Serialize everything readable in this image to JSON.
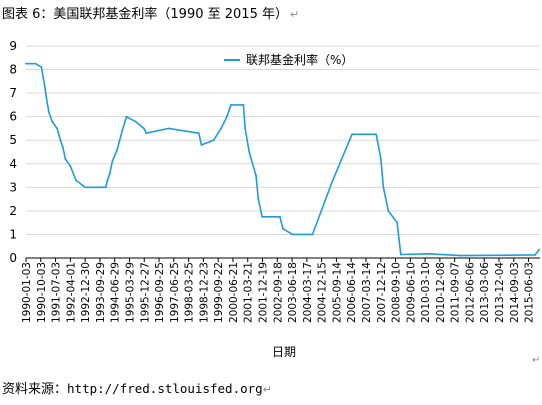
{
  "figure": {
    "title": "图表 6：美国联邦基金利率（1990 至 2015 年）",
    "paragraph_mark": "↵",
    "source_label": "资料来源：",
    "source_url": "http://fred.stlouisfed.org"
  },
  "colors": {
    "series": "#1f9ae0",
    "gridline": "#d9d9d9",
    "axis": "#000000"
  },
  "chart_data": {
    "type": "line",
    "xlabel": "日期",
    "ylabel": "",
    "ylim": [
      0,
      9
    ],
    "yticks": [
      "0",
      "1",
      "2",
      "3",
      "4",
      "5",
      "6",
      "7",
      "8",
      "9"
    ],
    "grid": "horizontal",
    "legend_position": "top-center",
    "x_tick_labels": [
      "1990-01-03",
      "1990-10-03",
      "1991-07-03",
      "1992-04-01",
      "1992-12-30",
      "1993-09-29",
      "1994-06-29",
      "1995-03-29",
      "1995-12-27",
      "1996-09-25",
      "1997-06-25",
      "1998-03-25",
      "1998-12-23",
      "1999-09-22",
      "2000-06-21",
      "2001-03-21",
      "2001-12-19",
      "2002-09-18",
      "2003-06-18",
      "2004-03-17",
      "2004-12-15",
      "2005-09-14",
      "2006-06-14",
      "2007-03-14",
      "2007-12-12",
      "2008-09-10",
      "2009-06-10",
      "2010-03-10",
      "2010-12-08",
      "2011-09-07",
      "2012-06-06",
      "2013-03-06",
      "2013-12-04",
      "2014-09-03",
      "2015-06-03"
    ],
    "series": [
      {
        "name": "联邦基金利率（%）",
        "points": [
          [
            "1990-01-03",
            8.25
          ],
          [
            "1990-07-01",
            8.25
          ],
          [
            "1990-10-15",
            8.1
          ],
          [
            "1990-12-15",
            7.3
          ],
          [
            "1991-01-15",
            6.8
          ],
          [
            "1991-03-01",
            6.2
          ],
          [
            "1991-05-01",
            5.8
          ],
          [
            "1991-08-01",
            5.5
          ],
          [
            "1991-10-01",
            5.0
          ],
          [
            "1991-11-15",
            4.7
          ],
          [
            "1991-12-31",
            4.2
          ],
          [
            "1992-04-01",
            3.9
          ],
          [
            "1992-07-15",
            3.3
          ],
          [
            "1992-12-30",
            3.0
          ],
          [
            "1993-09-29",
            3.0
          ],
          [
            "1994-01-15",
            3.0
          ],
          [
            "1994-02-15",
            3.3
          ],
          [
            "1994-04-01",
            3.6
          ],
          [
            "1994-05-15",
            4.1
          ],
          [
            "1994-08-15",
            4.6
          ],
          [
            "1994-11-15",
            5.4
          ],
          [
            "1995-02-01",
            6.0
          ],
          [
            "1995-07-15",
            5.8
          ],
          [
            "1995-12-20",
            5.5
          ],
          [
            "1996-02-01",
            5.3
          ],
          [
            "1997-03-25",
            5.5
          ],
          [
            "1998-09-29",
            5.3
          ],
          [
            "1998-11-17",
            4.8
          ],
          [
            "1999-06-30",
            5.0
          ],
          [
            "1999-11-16",
            5.5
          ],
          [
            "2000-03-01",
            6.0
          ],
          [
            "2000-05-16",
            6.5
          ],
          [
            "2000-12-31",
            6.5
          ],
          [
            "2001-01-31",
            5.5
          ],
          [
            "2001-04-18",
            4.5
          ],
          [
            "2001-08-21",
            3.5
          ],
          [
            "2001-10-02",
            2.5
          ],
          [
            "2001-12-11",
            1.75
          ],
          [
            "2002-11-06",
            1.75
          ],
          [
            "2002-12-31",
            1.25
          ],
          [
            "2003-06-25",
            1.0
          ],
          [
            "2004-06-30",
            1.0
          ],
          [
            "2005-06-30",
            3.25
          ],
          [
            "2006-06-29",
            5.25
          ],
          [
            "2007-09-18",
            5.25
          ],
          [
            "2007-12-11",
            4.25
          ],
          [
            "2008-01-30",
            3.0
          ],
          [
            "2008-04-30",
            2.0
          ],
          [
            "2008-10-08",
            1.5
          ],
          [
            "2008-12-16",
            0.15
          ],
          [
            "2010-06-01",
            0.18
          ],
          [
            "2012-01-01",
            0.1
          ],
          [
            "2015-10-01",
            0.13
          ],
          [
            "2015-12-17",
            0.36
          ]
        ]
      }
    ]
  }
}
